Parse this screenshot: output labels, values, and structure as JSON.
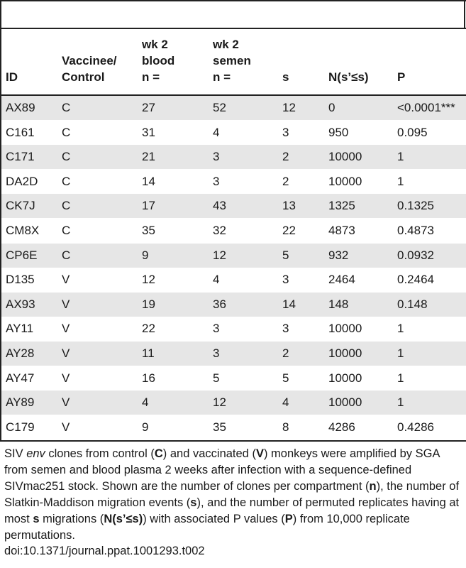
{
  "table": {
    "headers": {
      "id": "ID",
      "group": "Vaccinee/\nControl",
      "blood": "wk 2\nblood\nn =",
      "semen": "wk 2\nsemen\nn =",
      "s": "s",
      "n_perm": "N(s’≤s)",
      "p": "P"
    },
    "rows": [
      {
        "id": "AX89",
        "group": "C",
        "blood": "27",
        "semen": "52",
        "s": "12",
        "n_perm": "0",
        "p": "<0.0001***"
      },
      {
        "id": "C161",
        "group": "C",
        "blood": "31",
        "semen": "4",
        "s": "3",
        "n_perm": "950",
        "p": "0.095"
      },
      {
        "id": "C171",
        "group": "C",
        "blood": "21",
        "semen": "3",
        "s": "2",
        "n_perm": "10000",
        "p": "1"
      },
      {
        "id": "DA2D",
        "group": "C",
        "blood": "14",
        "semen": "3",
        "s": "2",
        "n_perm": "10000",
        "p": "1"
      },
      {
        "id": "CK7J",
        "group": "C",
        "blood": "17",
        "semen": "43",
        "s": "13",
        "n_perm": "1325",
        "p": "0.1325"
      },
      {
        "id": "CM8X",
        "group": "C",
        "blood": "35",
        "semen": "32",
        "s": "22",
        "n_perm": "4873",
        "p": "0.4873"
      },
      {
        "id": "CP6E",
        "group": "C",
        "blood": "9",
        "semen": "12",
        "s": "5",
        "n_perm": "932",
        "p": "0.0932"
      },
      {
        "id": "D135",
        "group": "V",
        "blood": "12",
        "semen": "4",
        "s": "3",
        "n_perm": "2464",
        "p": "0.2464"
      },
      {
        "id": "AX93",
        "group": "V",
        "blood": "19",
        "semen": "36",
        "s": "14",
        "n_perm": "148",
        "p": "0.148"
      },
      {
        "id": "AY11",
        "group": "V",
        "blood": "22",
        "semen": "3",
        "s": "3",
        "n_perm": "10000",
        "p": "1"
      },
      {
        "id": "AY28",
        "group": "V",
        "blood": "11",
        "semen": "3",
        "s": "2",
        "n_perm": "10000",
        "p": "1"
      },
      {
        "id": "AY47",
        "group": "V",
        "blood": "16",
        "semen": "5",
        "s": "5",
        "n_perm": "10000",
        "p": "1"
      },
      {
        "id": "AY89",
        "group": "V",
        "blood": "4",
        "semen": "12",
        "s": "4",
        "n_perm": "10000",
        "p": "1"
      },
      {
        "id": "C179",
        "group": "V",
        "blood": "9",
        "semen": "35",
        "s": "8",
        "n_perm": "4286",
        "p": "0.4286"
      }
    ]
  },
  "caption": {
    "t1": "SIV ",
    "t2": "env",
    "t3": " clones from control (",
    "t4": "C",
    "t5": ") and vaccinated (",
    "t6": "V",
    "t7": ") monkeys were amplified by SGA from semen and blood plasma 2 weeks after infection with a sequence-defined SIVmac251 stock. Shown are the number of clones per compartment (",
    "t8": "n",
    "t9": "), the number of Slatkin-Maddison migration events (",
    "t10": "s",
    "t11": "), and the number of permuted replicates having at most ",
    "t12": "s",
    "t13": " migrations (",
    "t14": "N(s’≤s)",
    "t15": ") with associated P values (",
    "t16": "P",
    "t17": ") from 10,000 replicate permutations."
  },
  "doi": "doi:10.1371/journal.ppat.1001293.t002"
}
